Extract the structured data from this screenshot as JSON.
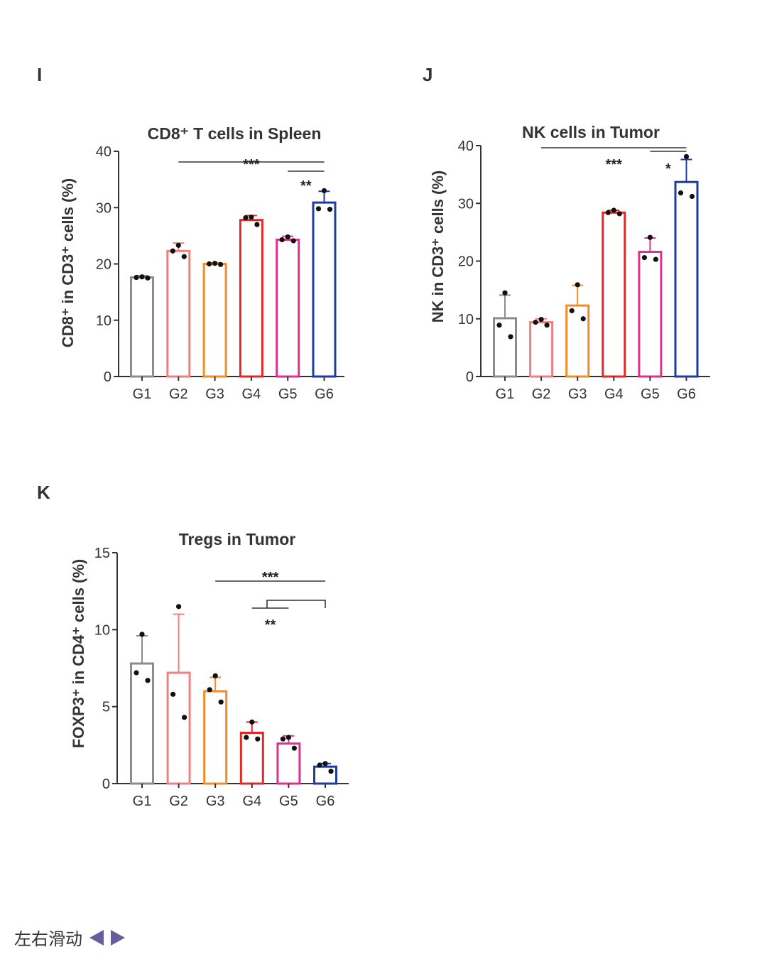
{
  "panels": [
    {
      "letter": "I"
    },
    {
      "letter": "J"
    },
    {
      "letter": "K"
    }
  ],
  "footer": {
    "swipe_text": "左右滑动",
    "left_icon": "triangle-left-icon",
    "right_icon": "triangle-right-icon",
    "arrow_color": "#6a5d9e"
  },
  "chart_data": [
    {
      "type": "bar",
      "title": "CD8⁺ T cells in Spleen",
      "ylabel": "CD8⁺ in CD3⁺ cells (%)",
      "xlabel": "",
      "categories": [
        "G1",
        "G2",
        "G3",
        "G4",
        "G5",
        "G6"
      ],
      "colors": [
        "#8c8c8c",
        "#f08080",
        "#f28c28",
        "#e02a2a",
        "#e0308c",
        "#1f3b9e"
      ],
      "values": [
        17.6,
        22.3,
        20.0,
        27.8,
        24.3,
        30.9
      ],
      "errors": [
        0.3,
        1.4,
        0.2,
        0.8,
        0.6,
        2.0
      ],
      "points": [
        [
          17.7,
          17.6,
          17.5
        ],
        [
          23.3,
          22.3,
          21.3
        ],
        [
          20.1,
          20.0,
          19.9
        ],
        [
          28.3,
          28.2,
          27.0
        ],
        [
          24.8,
          24.3,
          24.1
        ],
        [
          33.0,
          29.8,
          29.7
        ]
      ],
      "ylim": [
        0,
        40
      ],
      "yticks": [
        0,
        10,
        20,
        30,
        40
      ],
      "significance": [
        {
          "from": "G2",
          "to": "G6",
          "label": "***"
        },
        {
          "from": "G5",
          "to": "G6",
          "label": "**"
        }
      ]
    },
    {
      "type": "bar",
      "title": "NK cells in Tumor",
      "ylabel": "NK in CD3⁺ cells (%)",
      "xlabel": "",
      "categories": [
        "G1",
        "G2",
        "G3",
        "G4",
        "G5",
        "G6"
      ],
      "colors": [
        "#8c8c8c",
        "#f08080",
        "#f28c28",
        "#e02a2a",
        "#e0308c",
        "#1f3b9e"
      ],
      "values": [
        10.1,
        9.4,
        12.3,
        28.4,
        21.6,
        33.7
      ],
      "errors": [
        4.0,
        0.6,
        3.5,
        0.4,
        2.4,
        3.9
      ],
      "points": [
        [
          14.5,
          8.9,
          6.9
        ],
        [
          9.9,
          9.4,
          8.9
        ],
        [
          15.9,
          11.4,
          10.0
        ],
        [
          28.8,
          28.4,
          28.2
        ],
        [
          24.1,
          20.6,
          20.3
        ],
        [
          38.1,
          31.8,
          31.2
        ]
      ],
      "ylim": [
        0,
        40
      ],
      "yticks": [
        0,
        10,
        20,
        30,
        40
      ],
      "significance": [
        {
          "from": "G2",
          "to": "G6",
          "label": "***"
        },
        {
          "from": "G5",
          "to": "G6",
          "label": "*"
        }
      ]
    },
    {
      "type": "bar",
      "title": "Tregs in Tumor",
      "ylabel": "FOXP3⁺ in CD4⁺ cells (%)",
      "xlabel": "",
      "categories": [
        "G1",
        "G2",
        "G3",
        "G4",
        "G5",
        "G6"
      ],
      "colors": [
        "#8c8c8c",
        "#f08080",
        "#f28c28",
        "#e02a2a",
        "#e0308c",
        "#1f3b9e"
      ],
      "values": [
        7.8,
        7.2,
        6.0,
        3.3,
        2.6,
        1.1
      ],
      "errors": [
        1.8,
        3.8,
        0.9,
        0.7,
        0.5,
        0.2
      ],
      "points": [
        [
          9.7,
          7.2,
          6.7
        ],
        [
          11.5,
          5.8,
          4.3
        ],
        [
          7.0,
          6.1,
          5.3
        ],
        [
          4.0,
          3.0,
          2.9
        ],
        [
          3.0,
          2.9,
          2.3
        ],
        [
          1.3,
          1.2,
          0.8
        ]
      ],
      "ylim": [
        0,
        15
      ],
      "yticks": [
        0,
        5,
        10,
        15
      ],
      "significance": [
        {
          "from": "G3",
          "to": "G6",
          "label": "***"
        },
        {
          "from": "G4",
          "to": "G5",
          "label": "**"
        }
      ]
    }
  ]
}
